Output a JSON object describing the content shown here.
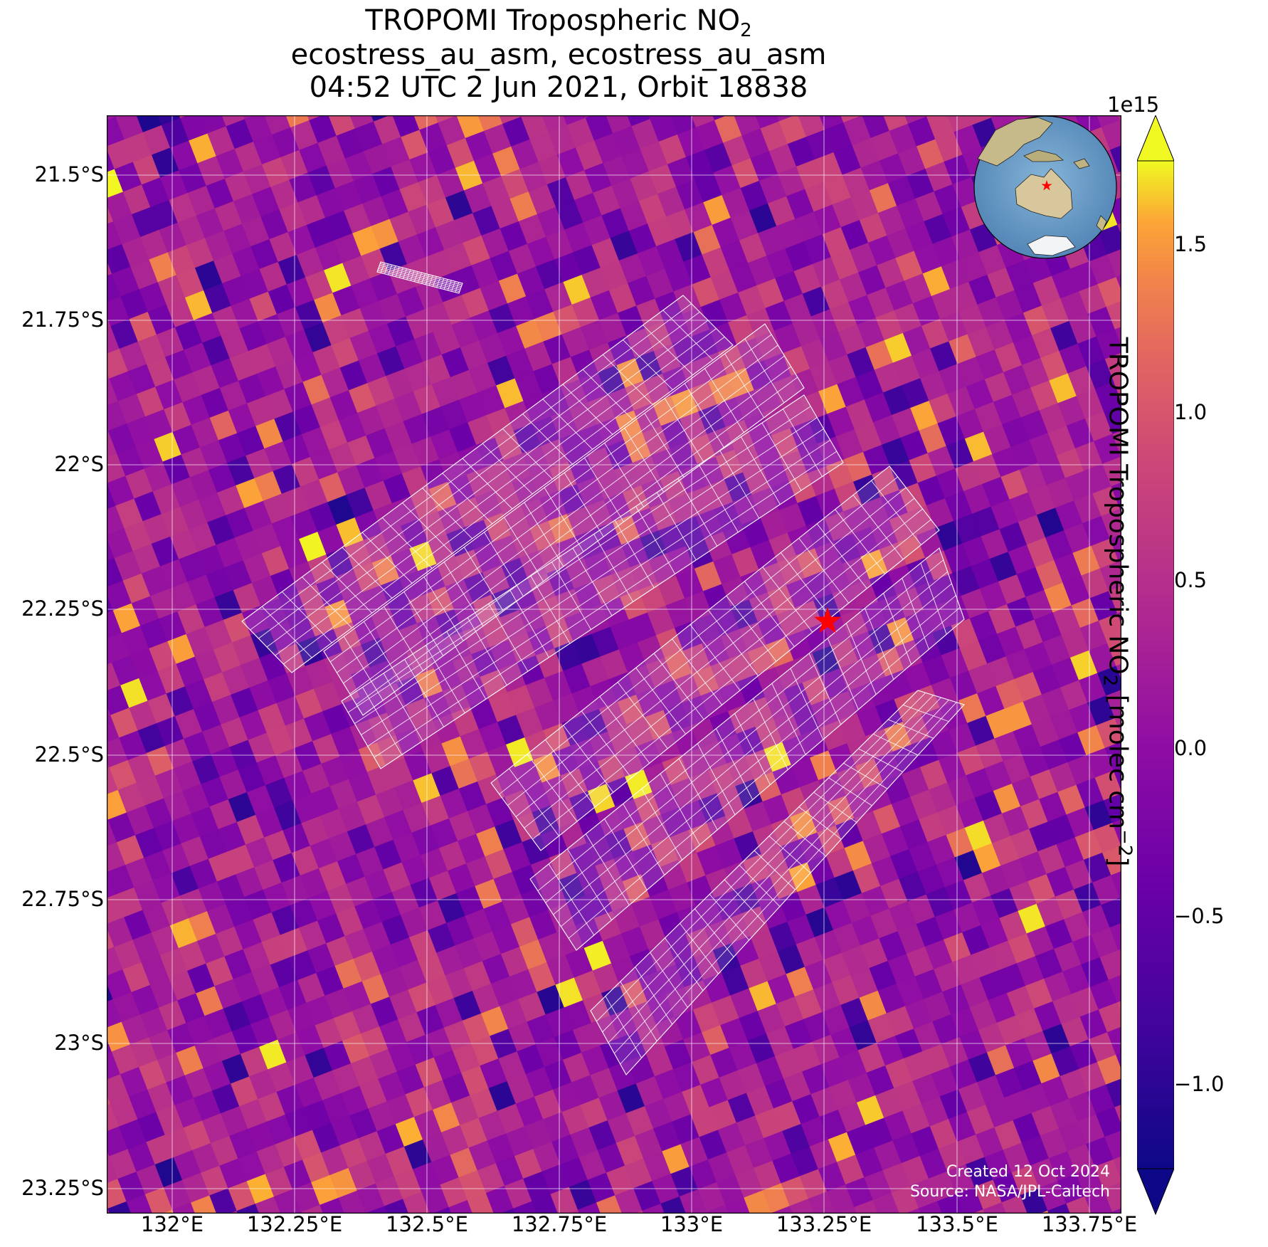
{
  "title": {
    "line1_main": "TROPOMI Tropospheric NO",
    "line1_sub": "2",
    "line2": "ecostress_au_asm, ecostress_au_asm",
    "line3": "04:52 UTC 2 Jun 2021, Orbit 18838"
  },
  "map": {
    "lon_ticks": [
      "132°E",
      "132.25°E",
      "132.5°E",
      "132.75°E",
      "133°E",
      "133.25°E",
      "133.5°E",
      "133.75°E"
    ],
    "lat_ticks": [
      "21.5°S",
      "21.75°S",
      "22°S",
      "22.25°S",
      "22.5°S",
      "22.75°S",
      "23°S",
      "23.25°S"
    ],
    "lon_range": [
      131.88,
      133.78
    ],
    "lat_range": [
      -23.3,
      -21.4
    ],
    "grid": true,
    "site_marker": {
      "symbol": "star",
      "color": "#ff0000",
      "lon": 133.25,
      "lat": -22.28
    },
    "inset_globe": {
      "placement": "top-right",
      "marker_color": "#ff0000"
    }
  },
  "colorbar": {
    "label_main": "TROPOMI Tropospheric NO",
    "label_sub": "2",
    "label_units_pre": " [molec cm",
    "label_units_sup": "−2",
    "label_units_post": "]",
    "exponent": "1e15",
    "ticks": [
      "1.5",
      "1.0",
      "0.5",
      "0.0",
      "−0.5",
      "−1.0"
    ],
    "tick_values": [
      1.5,
      1.0,
      0.5,
      0.0,
      -0.5,
      -1.0
    ],
    "vmin": -1.25,
    "vmax": 1.75,
    "colormap": "plasma",
    "extend": "both"
  },
  "credits": {
    "created": "Created 12 Oct 2024",
    "source": "Source: NASA/JPL-Caltech"
  },
  "colors": {
    "grid": "#ffffff",
    "footprint": "#ffffff",
    "star": "#ff0000"
  }
}
